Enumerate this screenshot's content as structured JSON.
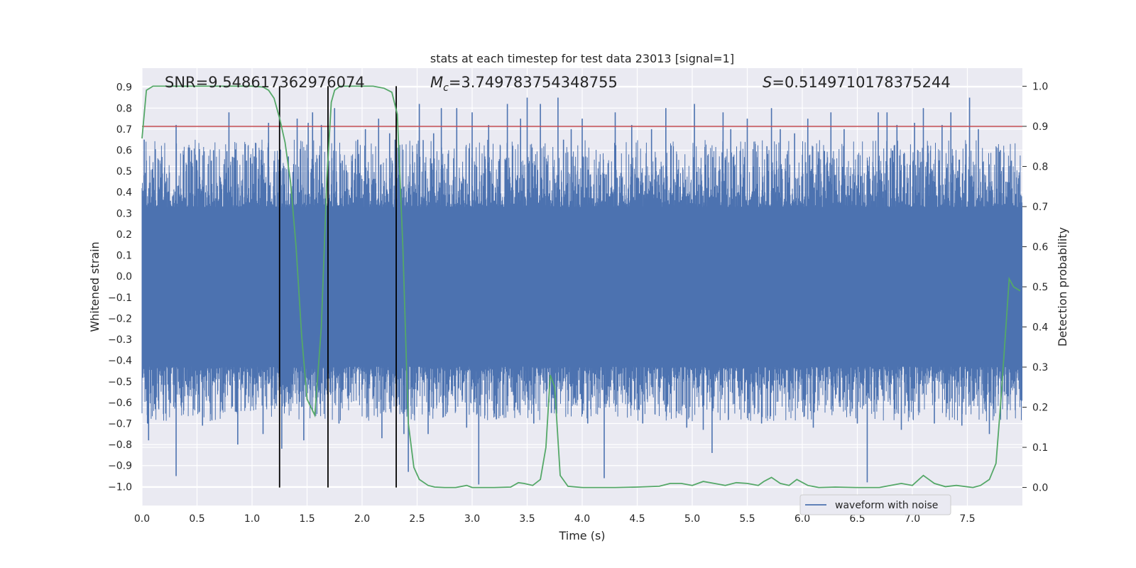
{
  "chart_data": {
    "type": "line",
    "title": "stats at each timestep for test data 23013 [signal=1]",
    "xlabel": "Time (s)",
    "ylabel_left": "Whitened strain",
    "ylabel_right": "Detection probability",
    "xlim": [
      0.0,
      8.0
    ],
    "ylim_left": [
      -1.09,
      0.99
    ],
    "ylim_right": [
      -0.045,
      1.045
    ],
    "xticks": [
      "0.0",
      "0.5",
      "1.0",
      "1.5",
      "2.0",
      "2.5",
      "3.0",
      "3.5",
      "4.0",
      "4.5",
      "5.0",
      "5.5",
      "6.0",
      "6.5",
      "7.0",
      "7.5"
    ],
    "yticks_left": [
      "0.9",
      "0.8",
      "0.7",
      "0.6",
      "0.5",
      "0.4",
      "0.3",
      "0.2",
      "0.1",
      "0.0",
      "-0.1",
      "-0.2",
      "-0.3",
      "-0.4",
      "-0.5",
      "-0.6",
      "-0.7",
      "-0.8",
      "-0.9",
      "-1.0"
    ],
    "yticks_right": [
      "1.0",
      "0.9",
      "0.8",
      "0.7",
      "0.6",
      "0.5",
      "0.4",
      "0.3",
      "0.2",
      "0.1",
      "0.0"
    ],
    "grid": true,
    "legend": {
      "entries": [
        "waveform with noise"
      ],
      "placement": "lower-right"
    },
    "annotations": {
      "snr": "SNR=9.548617362976074",
      "mc_symbol": "M",
      "mc_sub": "c",
      "mc_value": "=3.749783754348755",
      "s_symbol": "S",
      "s_value": "=0.5149710178375244"
    },
    "threshold": {
      "axis": "right",
      "value": 0.9,
      "color": "#c44e52"
    },
    "vertical_markers": [
      1.25,
      1.69,
      2.31
    ],
    "waveform": {
      "name": "waveform with noise",
      "color": "#4c72b0",
      "band_upper": 0.33,
      "band_lower": -0.43,
      "peaks": [
        {
          "t": 0.02,
          "v": 0.65
        },
        {
          "t": 0.05,
          "v": -0.7
        },
        {
          "t": 0.06,
          "v": -0.78
        },
        {
          "t": 0.31,
          "v": 0.72
        },
        {
          "t": 0.31,
          "v": -0.95
        },
        {
          "t": 0.4,
          "v": 0.5
        },
        {
          "t": 0.45,
          "v": 0.6
        },
        {
          "t": 0.55,
          "v": -0.71
        },
        {
          "t": 0.63,
          "v": 0.55
        },
        {
          "t": 0.65,
          "v": 0.6
        },
        {
          "t": 0.73,
          "v": -0.63
        },
        {
          "t": 0.79,
          "v": 0.78
        },
        {
          "t": 0.87,
          "v": -0.8
        },
        {
          "t": 0.95,
          "v": 0.55
        },
        {
          "t": 1.02,
          "v": 0.57
        },
        {
          "t": 1.1,
          "v": -0.75
        },
        {
          "t": 1.15,
          "v": 0.73
        },
        {
          "t": 1.2,
          "v": 0.55
        },
        {
          "t": 1.27,
          "v": -0.82
        },
        {
          "t": 1.33,
          "v": 0.57
        },
        {
          "t": 1.41,
          "v": 0.75
        },
        {
          "t": 1.47,
          "v": -0.78
        },
        {
          "t": 1.51,
          "v": 0.73
        },
        {
          "t": 1.55,
          "v": 0.78
        },
        {
          "t": 1.63,
          "v": 0.72
        },
        {
          "t": 1.75,
          "v": 0.8
        },
        {
          "t": 1.79,
          "v": -0.7
        },
        {
          "t": 1.82,
          "v": 0.55
        },
        {
          "t": 1.96,
          "v": 0.65
        },
        {
          "t": 2.03,
          "v": 0.7
        },
        {
          "t": 2.15,
          "v": 0.75
        },
        {
          "t": 2.18,
          "v": -0.77
        },
        {
          "t": 2.25,
          "v": 0.68
        },
        {
          "t": 2.3,
          "v": 0.65
        },
        {
          "t": 2.38,
          "v": -0.75
        },
        {
          "t": 2.42,
          "v": -0.93
        },
        {
          "t": 2.52,
          "v": 0.82
        },
        {
          "t": 2.6,
          "v": -0.75
        },
        {
          "t": 2.65,
          "v": 0.68
        },
        {
          "t": 2.72,
          "v": 0.8
        },
        {
          "t": 2.86,
          "v": 0.8
        },
        {
          "t": 2.95,
          "v": -0.72
        },
        {
          "t": 3.0,
          "v": 0.78
        },
        {
          "t": 3.06,
          "v": -0.99
        },
        {
          "t": 3.15,
          "v": 0.72
        },
        {
          "t": 3.22,
          "v": -0.68
        },
        {
          "t": 3.32,
          "v": 0.82
        },
        {
          "t": 3.44,
          "v": 0.75
        },
        {
          "t": 3.5,
          "v": 0.85
        },
        {
          "t": 3.56,
          "v": -0.7
        },
        {
          "t": 3.62,
          "v": 0.82
        },
        {
          "t": 3.72,
          "v": -0.65
        },
        {
          "t": 3.78,
          "v": 0.85
        },
        {
          "t": 3.83,
          "v": 0.65
        },
        {
          "t": 3.9,
          "v": 0.7
        },
        {
          "t": 4.0,
          "v": 0.75
        },
        {
          "t": 4.05,
          "v": -0.7
        },
        {
          "t": 4.2,
          "v": -0.96
        },
        {
          "t": 4.3,
          "v": 0.78
        },
        {
          "t": 4.45,
          "v": 0.72
        },
        {
          "t": 4.55,
          "v": -0.7
        },
        {
          "t": 4.63,
          "v": 0.7
        },
        {
          "t": 4.76,
          "v": 0.8
        },
        {
          "t": 4.95,
          "v": -0.72
        },
        {
          "t": 5.02,
          "v": 0.82
        },
        {
          "t": 5.1,
          "v": -0.73
        },
        {
          "t": 5.18,
          "v": -0.84
        },
        {
          "t": 5.28,
          "v": 0.78
        },
        {
          "t": 5.35,
          "v": 0.7
        },
        {
          "t": 5.5,
          "v": 0.75
        },
        {
          "t": 5.63,
          "v": -0.7
        },
        {
          "t": 5.72,
          "v": 0.8
        },
        {
          "t": 5.8,
          "v": 0.7
        },
        {
          "t": 5.93,
          "v": 0.68
        },
        {
          "t": 6.05,
          "v": 0.75
        },
        {
          "t": 6.1,
          "v": -0.72
        },
        {
          "t": 6.26,
          "v": 0.78
        },
        {
          "t": 6.38,
          "v": 0.7
        },
        {
          "t": 6.5,
          "v": -0.7
        },
        {
          "t": 6.59,
          "v": -0.98
        },
        {
          "t": 6.69,
          "v": 0.78
        },
        {
          "t": 6.77,
          "v": 0.78
        },
        {
          "t": 6.86,
          "v": 0.72
        },
        {
          "t": 6.9,
          "v": -0.73
        },
        {
          "t": 7.02,
          "v": 0.73
        },
        {
          "t": 7.1,
          "v": 0.8
        },
        {
          "t": 7.2,
          "v": -0.7
        },
        {
          "t": 7.27,
          "v": 0.72
        },
        {
          "t": 7.35,
          "v": 0.78
        },
        {
          "t": 7.45,
          "v": -0.71
        },
        {
          "t": 7.52,
          "v": 0.85
        },
        {
          "t": 7.6,
          "v": 0.7
        },
        {
          "t": 7.7,
          "v": -0.75
        },
        {
          "t": 7.8,
          "v": 0.6
        },
        {
          "t": 7.85,
          "v": 0.45
        },
        {
          "t": 7.9,
          "v": 0.55
        },
        {
          "t": 7.93,
          "v": -0.5
        },
        {
          "t": 7.97,
          "v": 0.48
        }
      ]
    },
    "detection_probability": {
      "name": "detection probability",
      "color": "#55a868",
      "x": [
        0.0,
        0.04,
        0.1,
        0.2,
        0.5,
        0.8,
        1.0,
        1.1,
        1.15,
        1.2,
        1.25,
        1.3,
        1.35,
        1.4,
        1.45,
        1.5,
        1.57,
        1.63,
        1.68,
        1.72,
        1.75,
        1.8,
        1.9,
        2.0,
        2.1,
        2.2,
        2.27,
        2.32,
        2.37,
        2.42,
        2.47,
        2.52,
        2.6,
        2.66,
        2.75,
        2.85,
        2.95,
        3.0,
        3.05,
        3.2,
        3.35,
        3.42,
        3.47,
        3.55,
        3.62,
        3.67,
        3.71,
        3.75,
        3.8,
        3.87,
        4.0,
        4.1,
        4.3,
        4.5,
        4.7,
        4.8,
        4.9,
        5.0,
        5.1,
        5.2,
        5.3,
        5.4,
        5.5,
        5.6,
        5.65,
        5.72,
        5.8,
        5.88,
        5.95,
        6.05,
        6.15,
        6.3,
        6.5,
        6.7,
        6.9,
        7.0,
        7.1,
        7.15,
        7.2,
        7.3,
        7.4,
        7.55,
        7.62,
        7.7,
        7.76,
        7.8,
        7.85,
        7.88,
        7.92,
        7.98
      ],
      "values": [
        0.87,
        0.99,
        1.0,
        1.0,
        1.0,
        1.0,
        1.0,
        0.998,
        0.99,
        0.97,
        0.92,
        0.86,
        0.76,
        0.6,
        0.38,
        0.22,
        0.18,
        0.4,
        0.77,
        0.96,
        0.99,
        1.0,
        1.0,
        1.0,
        1.0,
        0.995,
        0.985,
        0.93,
        0.6,
        0.16,
        0.05,
        0.02,
        0.005,
        0.001,
        0.0,
        0.0,
        0.005,
        0.0,
        0.0,
        0.0,
        0.001,
        0.012,
        0.01,
        0.005,
        0.02,
        0.1,
        0.28,
        0.25,
        0.03,
        0.003,
        0.0,
        0.0,
        0.0,
        0.001,
        0.003,
        0.01,
        0.01,
        0.005,
        0.015,
        0.01,
        0.005,
        0.012,
        0.01,
        0.005,
        0.015,
        0.025,
        0.01,
        0.005,
        0.02,
        0.005,
        0.0,
        0.001,
        0.0,
        0.0,
        0.01,
        0.005,
        0.03,
        0.02,
        0.01,
        0.002,
        0.005,
        0.0,
        0.005,
        0.02,
        0.06,
        0.2,
        0.4,
        0.52,
        0.5,
        0.49
      ]
    }
  }
}
